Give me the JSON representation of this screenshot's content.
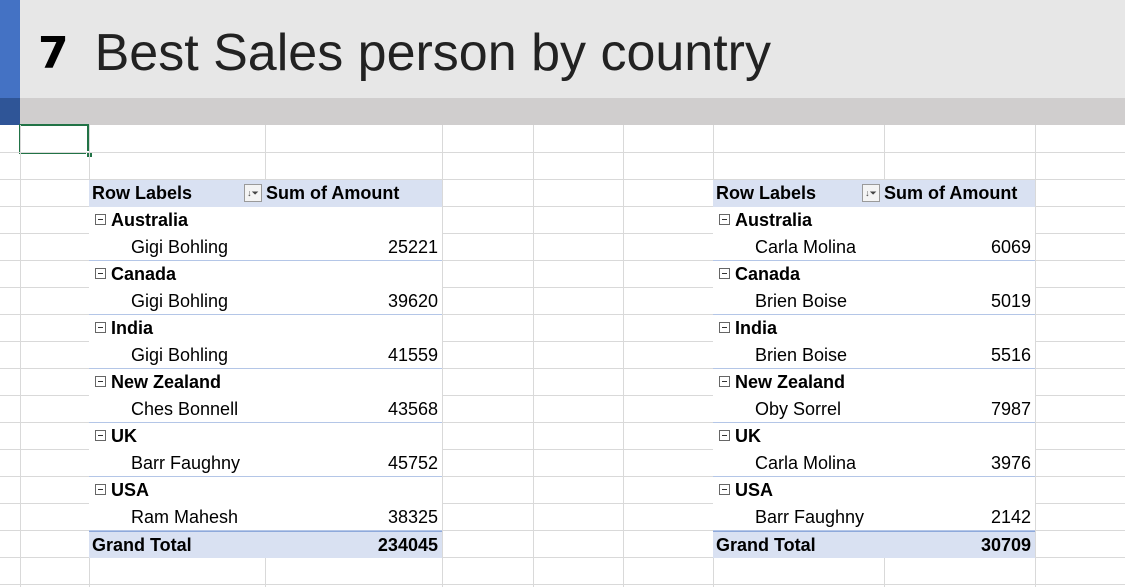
{
  "banner": {
    "number": "7",
    "title": "Best Sales person by country"
  },
  "pivots": [
    {
      "header": {
        "row_labels": "Row Labels",
        "value_header": "Sum of Amount",
        "filter_icon": "filter-sort-icon"
      },
      "groups": [
        {
          "country": "Australia",
          "person": "Gigi Bohling",
          "amount": "25221"
        },
        {
          "country": "Canada",
          "person": "Gigi Bohling",
          "amount": "39620"
        },
        {
          "country": "India",
          "person": "Gigi Bohling",
          "amount": "41559"
        },
        {
          "country": "New Zealand",
          "person": "Ches Bonnell",
          "amount": "43568"
        },
        {
          "country": "UK",
          "person": "Barr Faughny",
          "amount": "45752"
        },
        {
          "country": "USA",
          "person": "Ram Mahesh",
          "amount": "38325"
        }
      ],
      "grand_total": {
        "label": "Grand Total",
        "value": "234045"
      }
    },
    {
      "header": {
        "row_labels": "Row Labels",
        "value_header": "Sum of Amount",
        "filter_icon": "filter-sort-icon"
      },
      "groups": [
        {
          "country": "Australia",
          "person": "Carla Molina",
          "amount": "6069"
        },
        {
          "country": "Canada",
          "person": "Brien Boise",
          "amount": "5019"
        },
        {
          "country": "India",
          "person": "Brien Boise",
          "amount": "5516"
        },
        {
          "country": "New Zealand",
          "person": "Oby Sorrel",
          "amount": "7987"
        },
        {
          "country": "UK",
          "person": "Carla Molina",
          "amount": "3976"
        },
        {
          "country": "USA",
          "person": "Barr Faughny",
          "amount": "2142"
        }
      ],
      "grand_total": {
        "label": "Grand Total",
        "value": "30709"
      }
    }
  ],
  "colors": {
    "accent_blue": "#4472c4",
    "pivot_header": "#d9e1f2",
    "selection_green": "#217346"
  }
}
